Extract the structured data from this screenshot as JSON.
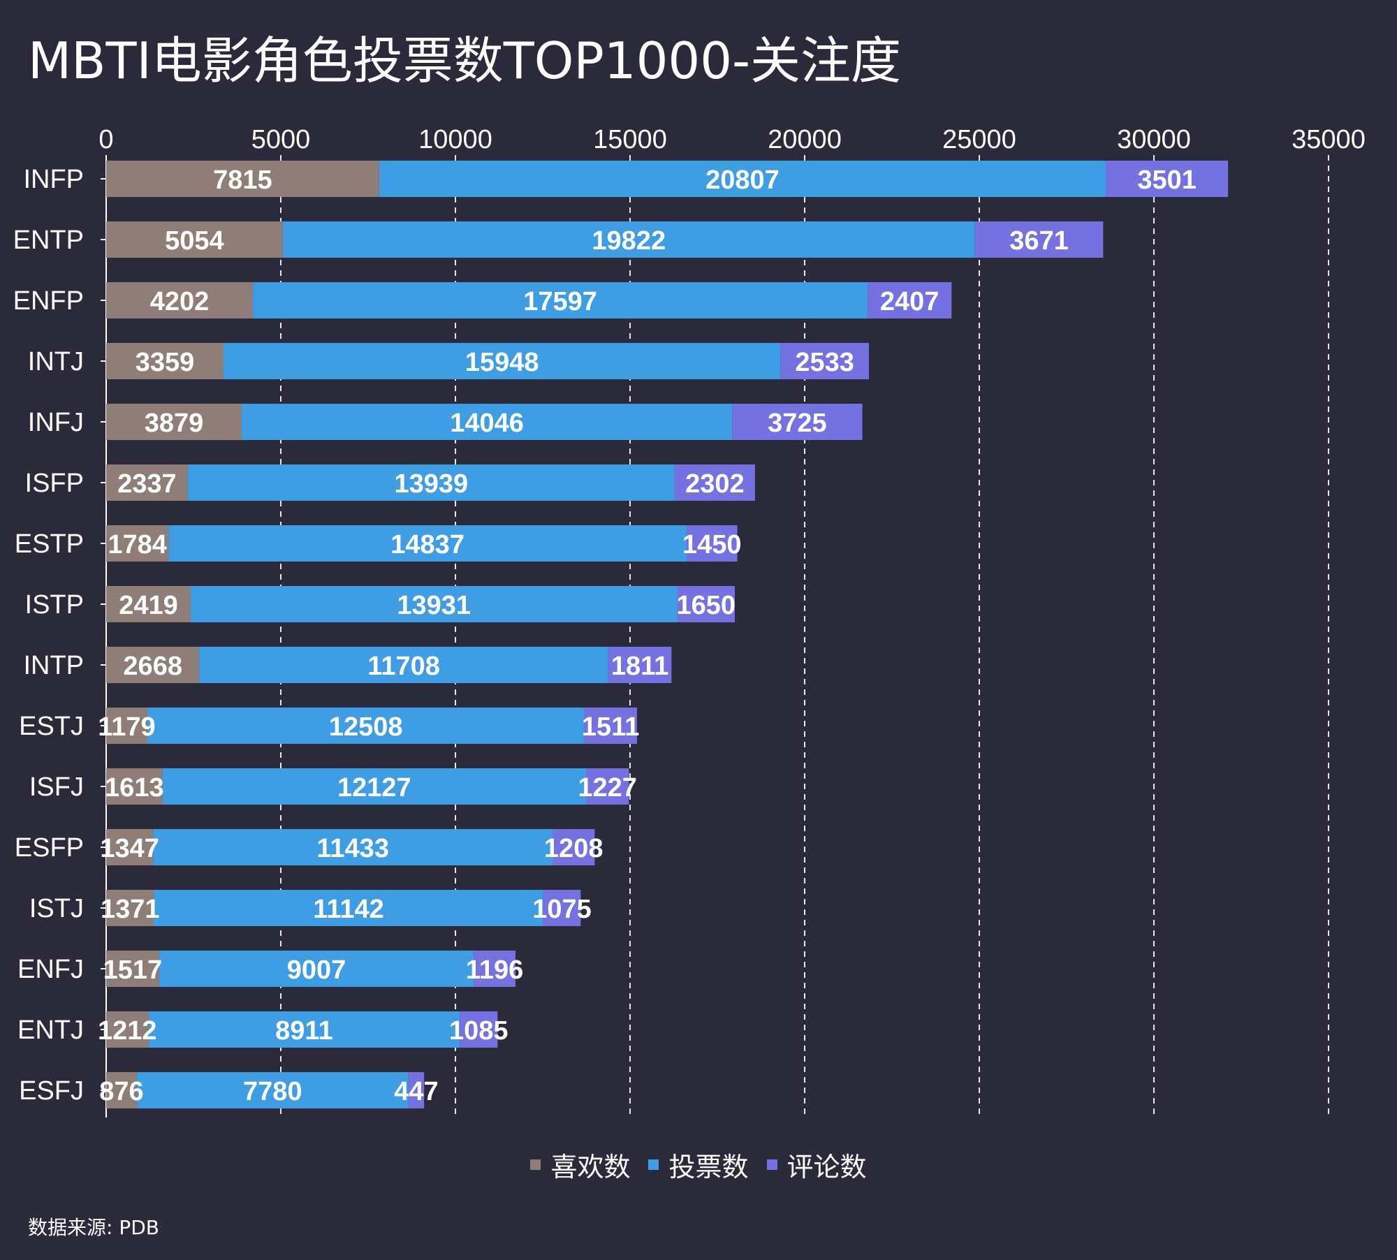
{
  "title": "MBTI电影角色投票数TOP1000-关注度",
  "source": "数据来源: PDB",
  "chart_data": {
    "type": "bar",
    "orientation": "horizontal",
    "stacked": true,
    "title": "MBTI电影角色投票数TOP1000-关注度",
    "categories": [
      "INFP",
      "ENTP",
      "ENFP",
      "INTJ",
      "INFJ",
      "ISFP",
      "ESTP",
      "ISTP",
      "INTP",
      "ESTJ",
      "ISFJ",
      "ESFP",
      "ISTJ",
      "ENFJ",
      "ENTJ",
      "ESFJ"
    ],
    "series": [
      {
        "name": "喜欢数",
        "color": "#8f7e77",
        "values": [
          7815,
          5054,
          4202,
          3359,
          3879,
          2337,
          1784,
          2419,
          2668,
          1179,
          1613,
          1347,
          1371,
          1517,
          1212,
          876
        ]
      },
      {
        "name": "投票数",
        "color": "#3f9de3",
        "values": [
          20807,
          19822,
          17597,
          15948,
          14046,
          13939,
          14837,
          13931,
          11708,
          12508,
          12127,
          11433,
          11142,
          9007,
          8911,
          7780
        ]
      },
      {
        "name": "评论数",
        "color": "#7471e0",
        "values": [
          3501,
          3671,
          2407,
          2533,
          3725,
          2302,
          1450,
          1650,
          1811,
          1511,
          1227,
          1208,
          1075,
          1196,
          1085,
          447
        ]
      }
    ],
    "xlim": [
      0,
      35000
    ],
    "xticks": [
      0,
      5000,
      10000,
      15000,
      20000,
      25000,
      30000,
      35000
    ],
    "x_axis_position": "top",
    "grid": "vertical dashed",
    "data_labels": true,
    "legend_position": "bottom"
  }
}
